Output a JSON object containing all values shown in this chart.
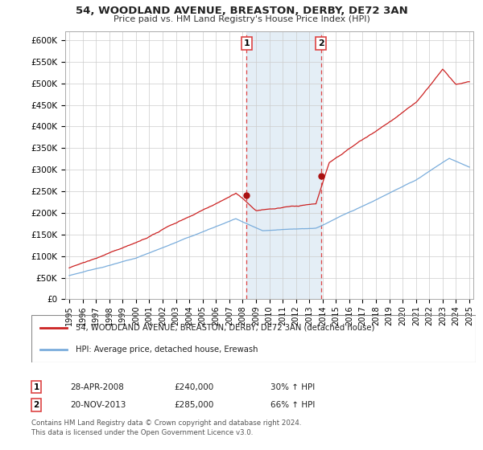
{
  "title": "54, WOODLAND AVENUE, BREASTON, DERBY, DE72 3AN",
  "subtitle": "Price paid vs. HM Land Registry's House Price Index (HPI)",
  "footer": "Contains HM Land Registry data © Crown copyright and database right 2024.\nThis data is licensed under the Open Government Licence v3.0.",
  "legend_line1": "54, WOODLAND AVENUE, BREASTON, DERBY, DE72 3AN (detached house)",
  "legend_line2": "HPI: Average price, detached house, Erewash",
  "sale1_date": "28-APR-2008",
  "sale1_price": "£240,000",
  "sale1_hpi": "30% ↑ HPI",
  "sale2_date": "20-NOV-2013",
  "sale2_price": "£285,000",
  "sale2_hpi": "66% ↑ HPI",
  "sale1_year": 2008.29,
  "sale1_value": 240000,
  "sale2_year": 2013.87,
  "sale2_value": 285000,
  "hpi_color": "#7aaddc",
  "price_color": "#cc2222",
  "marker_color": "#aa1111",
  "shade_color": "#deeaf4",
  "vline_color": "#dd4444",
  "background_color": "#ffffff",
  "grid_color": "#cccccc",
  "ylim": [
    0,
    620000
  ],
  "yticks": [
    0,
    50000,
    100000,
    150000,
    200000,
    250000,
    300000,
    350000,
    400000,
    450000,
    500000,
    550000,
    600000
  ],
  "ytick_labels": [
    "£0",
    "£50K",
    "£100K",
    "£150K",
    "£200K",
    "£250K",
    "£300K",
    "£350K",
    "£400K",
    "£450K",
    "£500K",
    "£550K",
    "£600K"
  ],
  "xlim": [
    1994.7,
    2025.3
  ],
  "xticks": [
    1995,
    1996,
    1997,
    1998,
    1999,
    2000,
    2001,
    2002,
    2003,
    2004,
    2005,
    2006,
    2007,
    2008,
    2009,
    2010,
    2011,
    2012,
    2013,
    2014,
    2015,
    2016,
    2017,
    2018,
    2019,
    2020,
    2021,
    2022,
    2023,
    2024,
    2025
  ]
}
